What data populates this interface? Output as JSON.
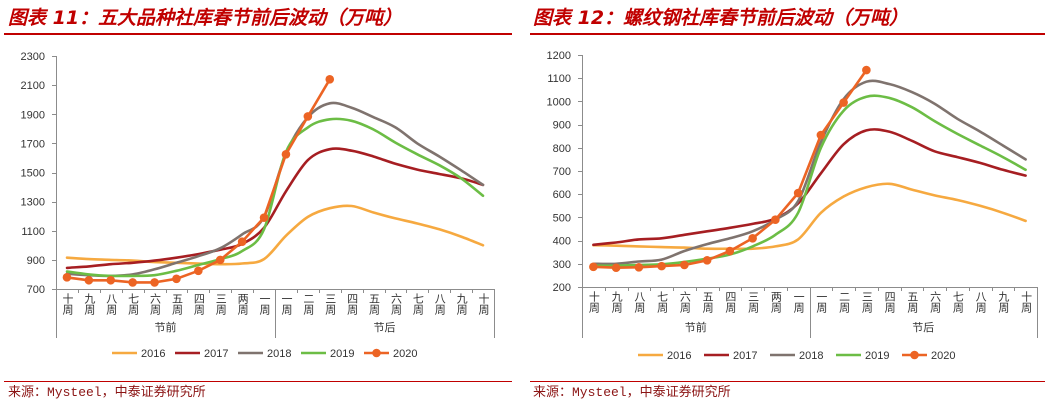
{
  "panels": [
    {
      "source": "来源：Mysteel，中泰证券研究所"
    },
    {
      "source": "来源：Mysteel，中泰证券研究所"
    }
  ],
  "chart_data": [
    {
      "type": "line",
      "title": "图表 11：五大品种社库春节前后波动（万吨）",
      "categories": [
        "十周",
        "九周",
        "八周",
        "七周",
        "六周",
        "五周",
        "四周",
        "三周",
        "两周",
        "一周",
        "一周",
        "二周",
        "三周",
        "四周",
        "五周",
        "六周",
        "七周",
        "八周",
        "九周",
        "十周"
      ],
      "category_groups": [
        {
          "label": "节前",
          "count": 10
        },
        {
          "label": "节后",
          "count": 10
        }
      ],
      "ylim": [
        700,
        2300
      ],
      "yticks": [
        700,
        900,
        1100,
        1300,
        1500,
        1700,
        1900,
        2100,
        2300
      ],
      "grid": false,
      "legend": "bottom",
      "series": [
        {
          "name": "2016",
          "color": "#F6A940",
          "values": [
            915,
            905,
            900,
            895,
            885,
            880,
            875,
            870,
            875,
            905,
            1065,
            1195,
            1255,
            1270,
            1225,
            1185,
            1150,
            1110,
            1060,
            1000
          ]
        },
        {
          "name": "2017",
          "color": "#A61E22",
          "values": [
            845,
            855,
            870,
            880,
            895,
            915,
            940,
            970,
            1010,
            1120,
            1370,
            1585,
            1660,
            1650,
            1610,
            1560,
            1520,
            1490,
            1460,
            1415
          ]
        },
        {
          "name": "2018",
          "color": "#7F736E",
          "values": [
            805,
            795,
            790,
            800,
            835,
            880,
            925,
            980,
            1075,
            1195,
            1630,
            1880,
            1975,
            1945,
            1880,
            1810,
            1700,
            1610,
            1515,
            1415
          ]
        },
        {
          "name": "2019",
          "color": "#6CBD45",
          "values": [
            820,
            800,
            790,
            790,
            795,
            825,
            865,
            905,
            960,
            1110,
            1640,
            1810,
            1865,
            1855,
            1795,
            1705,
            1625,
            1550,
            1460,
            1340
          ]
        },
        {
          "name": "2020",
          "color": "#EC6424",
          "marker": true,
          "values": [
            780,
            760,
            760,
            745,
            745,
            770,
            825,
            900,
            1025,
            1190,
            1625,
            1885,
            2140,
            null,
            null,
            null,
            null,
            null,
            null,
            null
          ]
        }
      ]
    },
    {
      "type": "line",
      "title": "图表 12：螺纹钢社库春节前后波动（万吨）",
      "categories": [
        "十周",
        "九周",
        "八周",
        "七周",
        "六周",
        "五周",
        "四周",
        "三周",
        "两周",
        "一周",
        "一周",
        "二周",
        "三周",
        "四周",
        "五周",
        "六周",
        "七周",
        "八周",
        "九周",
        "十周"
      ],
      "category_groups": [
        {
          "label": "节前",
          "count": 10
        },
        {
          "label": "节后",
          "count": 10
        }
      ],
      "ylim": [
        200,
        1200
      ],
      "yticks": [
        200,
        300,
        400,
        500,
        600,
        700,
        800,
        900,
        1000,
        1100,
        1200
      ],
      "grid": false,
      "legend": "bottom",
      "series": [
        {
          "name": "2016",
          "color": "#F6A940",
          "values": [
            380,
            378,
            375,
            372,
            370,
            365,
            365,
            365,
            375,
            405,
            520,
            590,
            630,
            645,
            620,
            595,
            575,
            550,
            520,
            485
          ]
        },
        {
          "name": "2017",
          "color": "#A61E22",
          "values": [
            382,
            392,
            405,
            410,
            425,
            440,
            455,
            472,
            495,
            560,
            690,
            815,
            875,
            870,
            830,
            785,
            760,
            735,
            705,
            680
          ]
        },
        {
          "name": "2018",
          "color": "#7F736E",
          "values": [
            300,
            300,
            310,
            318,
            355,
            385,
            410,
            440,
            490,
            570,
            825,
            1010,
            1085,
            1075,
            1040,
            990,
            925,
            870,
            810,
            750
          ]
        },
        {
          "name": "2019",
          "color": "#6CBD45",
          "values": [
            292,
            292,
            295,
            298,
            308,
            322,
            340,
            375,
            425,
            520,
            800,
            960,
            1020,
            1015,
            975,
            915,
            860,
            810,
            760,
            705
          ]
        },
        {
          "name": "2020",
          "color": "#EC6424",
          "marker": true,
          "values": [
            287,
            283,
            285,
            290,
            295,
            315,
            355,
            410,
            490,
            605,
            855,
            995,
            1135,
            null,
            null,
            null,
            null,
            null,
            null,
            null
          ]
        }
      ]
    }
  ]
}
